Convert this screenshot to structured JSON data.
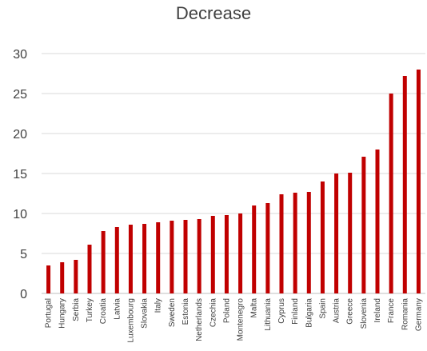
{
  "chart_data": {
    "type": "bar",
    "title": "Decrease",
    "xlabel": "",
    "ylabel": "",
    "ylim": [
      0,
      30
    ],
    "yticks": [
      0,
      5,
      10,
      15,
      20,
      25,
      30
    ],
    "grid": true,
    "bar_color": "#c00000",
    "categories": [
      "Portugal",
      "Hungary",
      "Serbia",
      "Turkey",
      "Croatia",
      "Latvia",
      "Luxembourg",
      "Slovakia",
      "Italy",
      "Sweden",
      "Estonia",
      "Netherlands",
      "Czechia",
      "Poland",
      "Montenegro",
      "Malta",
      "Lithuania",
      "Cyprus",
      "Finland",
      "Bulgaria",
      "Spain",
      "Austria",
      "Greece",
      "Slovenia",
      "Ireland",
      "France",
      "Romania",
      "Germany"
    ],
    "values": [
      3.5,
      3.9,
      4.2,
      6.1,
      7.8,
      8.3,
      8.6,
      8.7,
      8.9,
      9.1,
      9.2,
      9.3,
      9.7,
      9.8,
      10.0,
      11.0,
      11.3,
      12.4,
      12.6,
      12.7,
      14.0,
      15.0,
      15.1,
      17.1,
      18.0,
      25.0,
      27.2,
      28.0
    ]
  }
}
